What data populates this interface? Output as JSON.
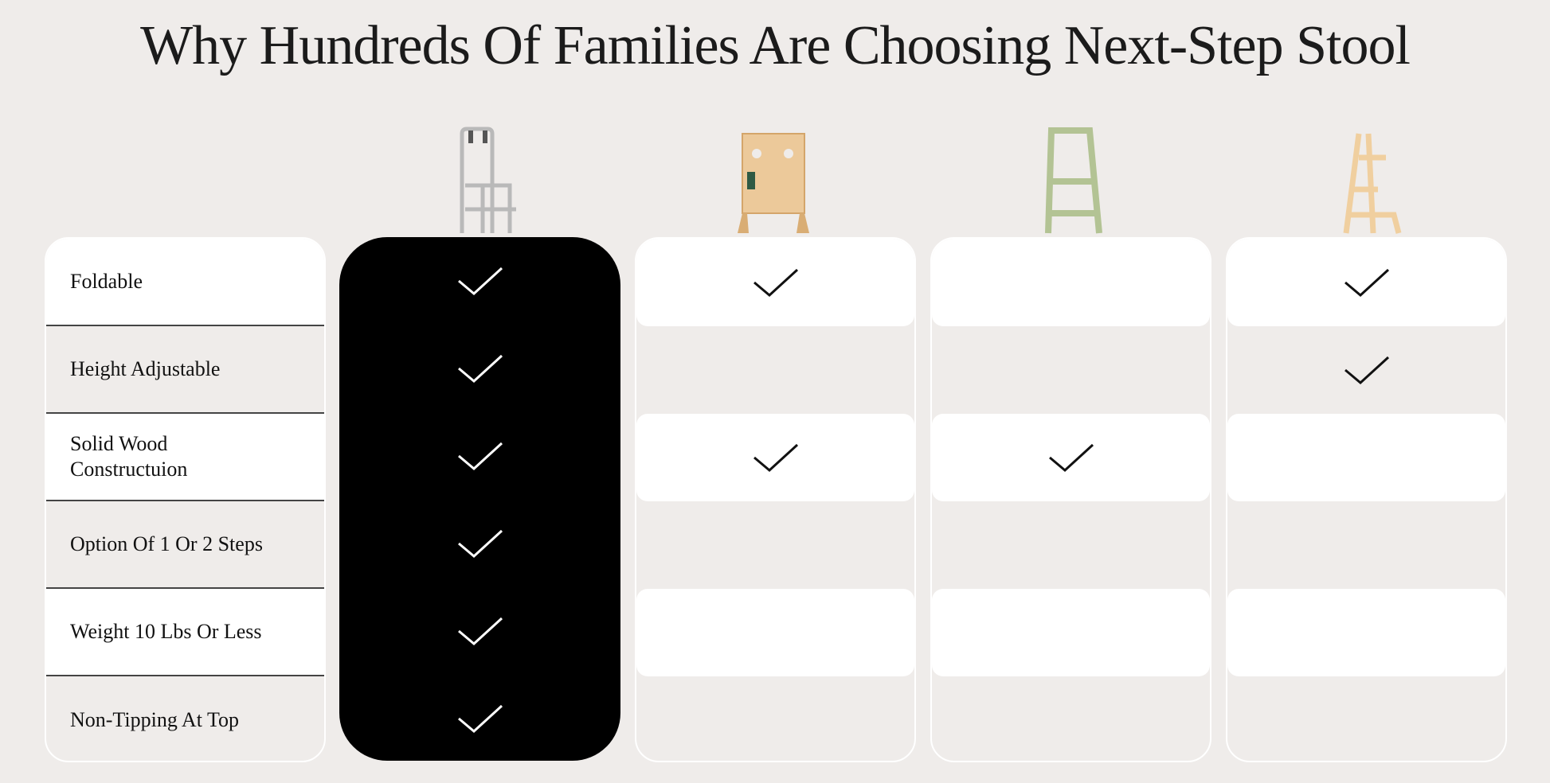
{
  "title": "Why Hundreds Of Families Are Choosing Next-Step Stool",
  "features": [
    "Foldable",
    "Height Adjustable",
    "Solid Wood Constructuion",
    "Option Of 1 Or 2 Steps",
    "Weight 10 Lbs Or Less",
    "Non-Tipping At Top"
  ],
  "products": [
    {
      "image": "grey-foldable-stool",
      "highlighted": true,
      "checks": [
        true,
        true,
        true,
        true,
        true,
        true
      ]
    },
    {
      "image": "natural-wood-learning-tower",
      "highlighted": false,
      "checks": [
        true,
        false,
        true,
        false,
        false,
        false
      ]
    },
    {
      "image": "green-learning-tower",
      "highlighted": false,
      "checks": [
        false,
        false,
        true,
        false,
        false,
        false
      ]
    },
    {
      "image": "natural-wood-step-ladder",
      "highlighted": false,
      "checks": [
        true,
        true,
        false,
        false,
        false,
        false
      ]
    }
  ],
  "colors": {
    "background": "#efecea",
    "highlight": "#000000",
    "check_on_dark": "#ffffff",
    "check_on_light": "#111111"
  }
}
